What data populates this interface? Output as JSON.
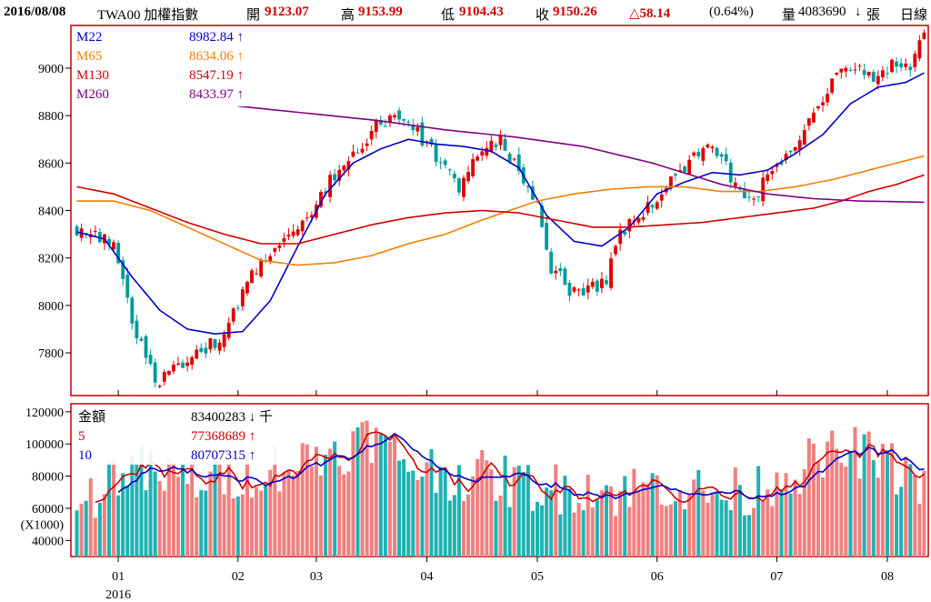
{
  "header": {
    "date": "2016/08/08",
    "symbol": "TWA00 加權指數",
    "open_label": "開",
    "open_value": "9123.07",
    "high_label": "高",
    "high_value": "9153.99",
    "low_label": "低",
    "low_value": "9104.43",
    "close_label": "收",
    "close_value": "9150.26",
    "change": "△58.14",
    "change_pct": "(0.64%)",
    "volume_label": "量",
    "volume_value": "4083690",
    "volume_arrow": "↓",
    "volume_unit": "張",
    "period": "日線"
  },
  "colors": {
    "up": "#e00000",
    "down": "#009a9a",
    "vol_up": "#f08080",
    "vol_down": "#20b2b2",
    "ma22": "#0000c8",
    "ma65": "#f08000",
    "ma130": "#d00000",
    "ma260": "#800080",
    "frame": "#c00000"
  },
  "price_legend": [
    {
      "name": "M22",
      "value": "8982.84",
      "arrow": "↑",
      "color": "#0000c8"
    },
    {
      "name": "M65",
      "value": "8634.06",
      "arrow": "↑",
      "color": "#f08000"
    },
    {
      "name": "M130",
      "value": "8547.19",
      "arrow": "↑",
      "color": "#d00000"
    },
    {
      "name": "M260",
      "value": "8433.97",
      "arrow": "↑",
      "color": "#800080"
    }
  ],
  "volume_legend": [
    {
      "name": "金額",
      "value": "83400283",
      "arrow": "↓",
      "unit": "千",
      "color": "#000000"
    },
    {
      "name": "5",
      "value": "77368689",
      "arrow": "↑",
      "unit": "",
      "color": "#d00000"
    },
    {
      "name": "10",
      "value": "80707315",
      "arrow": "↑",
      "unit": "",
      "color": "#0000c8"
    }
  ],
  "chart_data": {
    "type": "candlestick",
    "price_axis": {
      "ticks": [
        7800,
        8000,
        8200,
        8400,
        8600,
        8800,
        9000
      ],
      "ylim": [
        7620,
        9180
      ]
    },
    "volume_axis": {
      "ticks": [
        40000,
        60000,
        80000,
        100000,
        120000
      ],
      "ylim": [
        30000,
        125000
      ],
      "unit_label": "(X1000)"
    },
    "x_months": [
      {
        "label": "01",
        "index": 9
      },
      {
        "label": "02",
        "index": 35
      },
      {
        "label": "03",
        "index": 52
      },
      {
        "label": "04",
        "index": 76
      },
      {
        "label": "05",
        "index": 100
      },
      {
        "label": "06",
        "index": 126
      },
      {
        "label": "07",
        "index": 152
      },
      {
        "label": "08",
        "index": 176
      }
    ],
    "year_label": "2016",
    "n_days": 185,
    "keypoints": [
      [
        0,
        8320
      ],
      [
        8,
        8260
      ],
      [
        12,
        7920
      ],
      [
        17,
        7680
      ],
      [
        24,
        7760
      ],
      [
        32,
        7880
      ],
      [
        36,
        8040
      ],
      [
        40,
        8200
      ],
      [
        44,
        8260
      ],
      [
        50,
        8380
      ],
      [
        56,
        8550
      ],
      [
        61,
        8660
      ],
      [
        66,
        8780
      ],
      [
        72,
        8770
      ],
      [
        77,
        8660
      ],
      [
        83,
        8500
      ],
      [
        87,
        8640
      ],
      [
        92,
        8690
      ],
      [
        96,
        8560
      ],
      [
        100,
        8430
      ],
      [
        103,
        8160
      ],
      [
        107,
        8070
      ],
      [
        110,
        8040
      ],
      [
        115,
        8120
      ],
      [
        118,
        8300
      ],
      [
        122,
        8380
      ],
      [
        127,
        8480
      ],
      [
        132,
        8570
      ],
      [
        136,
        8680
      ],
      [
        140,
        8620
      ],
      [
        144,
        8460
      ],
      [
        147,
        8420
      ],
      [
        150,
        8560
      ],
      [
        156,
        8650
      ],
      [
        160,
        8820
      ],
      [
        166,
        8980
      ],
      [
        169,
        9020
      ],
      [
        173,
        8960
      ],
      [
        177,
        9010
      ],
      [
        181,
        9000
      ],
      [
        184,
        9150
      ]
    ],
    "ma_series": [
      {
        "name": "M22",
        "color": "#0000c8",
        "points": [
          [
            0,
            8310
          ],
          [
            6,
            8280
          ],
          [
            12,
            8120
          ],
          [
            18,
            7980
          ],
          [
            24,
            7900
          ],
          [
            30,
            7880
          ],
          [
            36,
            7890
          ],
          [
            42,
            8020
          ],
          [
            48,
            8250
          ],
          [
            54,
            8470
          ],
          [
            60,
            8600
          ],
          [
            66,
            8660
          ],
          [
            72,
            8700
          ],
          [
            78,
            8680
          ],
          [
            84,
            8670
          ],
          [
            90,
            8650
          ],
          [
            96,
            8580
          ],
          [
            102,
            8380
          ],
          [
            108,
            8270
          ],
          [
            114,
            8250
          ],
          [
            120,
            8330
          ],
          [
            126,
            8470
          ],
          [
            132,
            8520
          ],
          [
            138,
            8560
          ],
          [
            144,
            8550
          ],
          [
            150,
            8570
          ],
          [
            156,
            8640
          ],
          [
            162,
            8720
          ],
          [
            168,
            8850
          ],
          [
            174,
            8920
          ],
          [
            180,
            8940
          ],
          [
            184,
            8980
          ]
        ]
      },
      {
        "name": "M65",
        "color": "#f08000",
        "points": [
          [
            0,
            8440
          ],
          [
            8,
            8440
          ],
          [
            16,
            8400
          ],
          [
            24,
            8330
          ],
          [
            32,
            8260
          ],
          [
            40,
            8190
          ],
          [
            48,
            8170
          ],
          [
            56,
            8180
          ],
          [
            64,
            8210
          ],
          [
            72,
            8260
          ],
          [
            80,
            8300
          ],
          [
            88,
            8360
          ],
          [
            94,
            8400
          ],
          [
            100,
            8440
          ],
          [
            108,
            8470
          ],
          [
            116,
            8490
          ],
          [
            124,
            8500
          ],
          [
            132,
            8500
          ],
          [
            140,
            8480
          ],
          [
            148,
            8480
          ],
          [
            156,
            8500
          ],
          [
            164,
            8530
          ],
          [
            172,
            8570
          ],
          [
            178,
            8600
          ],
          [
            184,
            8630
          ]
        ]
      },
      {
        "name": "M130",
        "color": "#d00000",
        "points": [
          [
            0,
            8500
          ],
          [
            8,
            8470
          ],
          [
            16,
            8410
          ],
          [
            24,
            8350
          ],
          [
            32,
            8300
          ],
          [
            40,
            8260
          ],
          [
            48,
            8260
          ],
          [
            56,
            8300
          ],
          [
            64,
            8340
          ],
          [
            72,
            8370
          ],
          [
            80,
            8390
          ],
          [
            88,
            8400
          ],
          [
            96,
            8390
          ],
          [
            104,
            8360
          ],
          [
            112,
            8330
          ],
          [
            120,
            8330
          ],
          [
            128,
            8340
          ],
          [
            136,
            8350
          ],
          [
            144,
            8370
          ],
          [
            152,
            8390
          ],
          [
            160,
            8410
          ],
          [
            166,
            8440
          ],
          [
            172,
            8480
          ],
          [
            178,
            8510
          ],
          [
            184,
            8550
          ]
        ]
      },
      {
        "name": "M260",
        "color": "#800080",
        "points": [
          [
            35,
            8840
          ],
          [
            50,
            8810
          ],
          [
            65,
            8780
          ],
          [
            80,
            8740
          ],
          [
            95,
            8710
          ],
          [
            110,
            8670
          ],
          [
            125,
            8600
          ],
          [
            140,
            8510
          ],
          [
            150,
            8470
          ],
          [
            160,
            8450
          ],
          [
            170,
            8440
          ],
          [
            184,
            8435
          ]
        ]
      }
    ],
    "volume_keypoints": [
      [
        0,
        55000
      ],
      [
        4,
        70000
      ],
      [
        8,
        82000
      ],
      [
        12,
        86000
      ],
      [
        18,
        78000
      ],
      [
        24,
        80000
      ],
      [
        30,
        78000
      ],
      [
        36,
        82000
      ],
      [
        42,
        86000
      ],
      [
        48,
        88000
      ],
      [
        54,
        94000
      ],
      [
        60,
        100000
      ],
      [
        64,
        105000
      ],
      [
        68,
        95000
      ],
      [
        74,
        86000
      ],
      [
        80,
        82000
      ],
      [
        86,
        80000
      ],
      [
        92,
        78000
      ],
      [
        98,
        74000
      ],
      [
        104,
        72000
      ],
      [
        110,
        75000
      ],
      [
        116,
        70000
      ],
      [
        122,
        72000
      ],
      [
        128,
        76000
      ],
      [
        134,
        70000
      ],
      [
        140,
        68000
      ],
      [
        146,
        70000
      ],
      [
        152,
        80000
      ],
      [
        158,
        86000
      ],
      [
        164,
        92000
      ],
      [
        170,
        95000
      ],
      [
        176,
        86000
      ],
      [
        184,
        78000
      ]
    ]
  }
}
